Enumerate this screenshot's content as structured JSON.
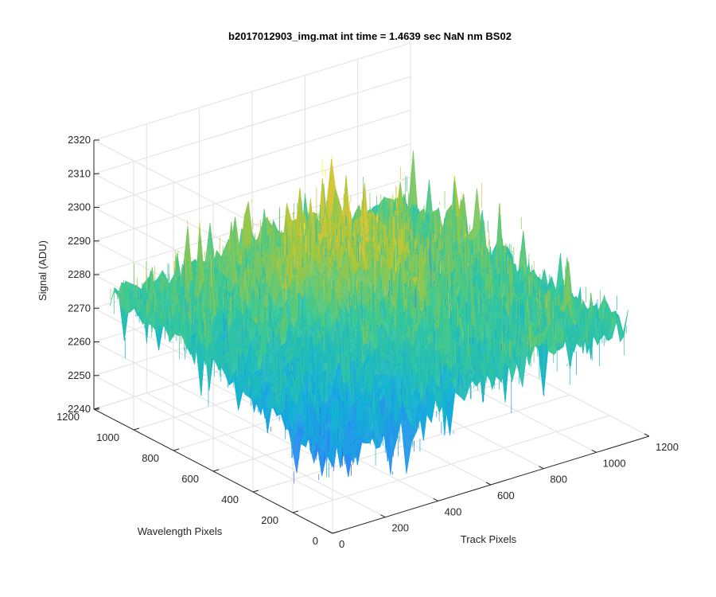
{
  "chart_data": {
    "type": "surface",
    "title": "b2017012903_img.mat int time = 1.4639 sec  NaN nm BS02",
    "xlabel": "Track Pixels",
    "ylabel": "Wavelength Pixels",
    "zlabel": "Signal (ADU)",
    "xlim": [
      0,
      1200
    ],
    "ylim": [
      0,
      1200
    ],
    "zlim": [
      2240,
      2320
    ],
    "x_ticks": [
      0,
      200,
      400,
      600,
      800,
      1000,
      1200
    ],
    "y_ticks": [
      0,
      200,
      400,
      600,
      800,
      1000,
      1200
    ],
    "z_ticks": [
      2240,
      2250,
      2260,
      2270,
      2280,
      2290,
      2300,
      2310,
      2320
    ],
    "x_tick_labels": [
      "0",
      "200",
      "400",
      "600",
      "800",
      "1000",
      "1200"
    ],
    "y_tick_labels": [
      "0",
      "200",
      "400",
      "600",
      "800",
      "1000",
      "1200"
    ],
    "z_tick_labels": [
      "2240",
      "2250",
      "2260",
      "2270",
      "2280",
      "2290",
      "2300",
      "2310",
      "2320"
    ],
    "surface": {
      "x_range": [
        0,
        1120
      ],
      "y_range": [
        0,
        1120
      ],
      "signal_mean": 2275,
      "signal_high_region": 2285,
      "signal_low_region": 2262,
      "signal_min": 2245,
      "signal_max": 2306
    },
    "grid": true,
    "colormap": "parula"
  }
}
